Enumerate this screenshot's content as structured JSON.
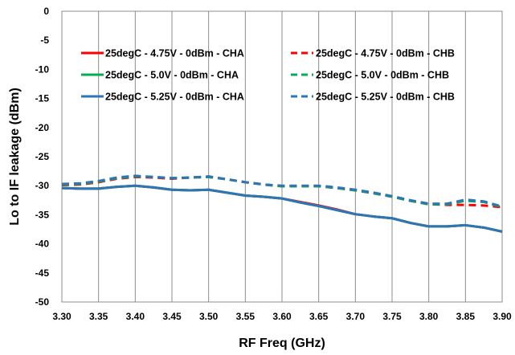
{
  "chart_data": {
    "type": "line",
    "title": "",
    "xlabel": "RF Freq (GHz)",
    "ylabel": "Lo to IF leakage (dBm)",
    "xlim": [
      3.3,
      3.9
    ],
    "ylim": [
      -50,
      0
    ],
    "x_ticks": [
      "3.30",
      "3.35",
      "3.40",
      "3.45",
      "3.50",
      "3.55",
      "3.60",
      "3.65",
      "3.70",
      "3.75",
      "3.80",
      "3.85",
      "3.90"
    ],
    "y_ticks": [
      "0",
      "-5",
      "-10",
      "-15",
      "-20",
      "-25",
      "-30",
      "-35",
      "-40",
      "-45",
      "-50"
    ],
    "grid": {
      "vertical": true,
      "horizontal": false
    },
    "legend_position": "top",
    "x": [
      3.3,
      3.325,
      3.35,
      3.375,
      3.4,
      3.425,
      3.45,
      3.475,
      3.5,
      3.525,
      3.55,
      3.575,
      3.6,
      3.625,
      3.65,
      3.675,
      3.7,
      3.725,
      3.75,
      3.775,
      3.8,
      3.825,
      3.85,
      3.875,
      3.9
    ],
    "series": [
      {
        "name": "25degC - 4.75V - 0dBm - CHA",
        "color": "#ff0000",
        "dash": "solid",
        "values": [
          -30.4,
          -30.5,
          -30.5,
          -30.2,
          -30.0,
          -30.3,
          -30.7,
          -30.8,
          -30.7,
          -31.2,
          -31.7,
          -31.9,
          -32.2,
          -32.8,
          -33.4,
          -34.1,
          -34.9,
          -35.3,
          -35.6,
          -36.4,
          -37.0,
          -37.0,
          -36.8,
          -37.2,
          -37.9
        ]
      },
      {
        "name": "25degC - 4.75V - 0dBm - CHB",
        "color": "#ff0000",
        "dash": "dashed",
        "values": [
          -29.9,
          -29.8,
          -29.4,
          -28.8,
          -28.5,
          -28.6,
          -28.8,
          -28.6,
          -28.5,
          -28.9,
          -29.4,
          -29.8,
          -30.1,
          -30.1,
          -30.1,
          -30.4,
          -30.8,
          -31.3,
          -31.9,
          -32.6,
          -33.2,
          -33.3,
          -33.3,
          -33.4,
          -33.7
        ]
      },
      {
        "name": "25degC - 5.0V - 0dBm - CHA",
        "color": "#00b050",
        "dash": "solid",
        "values": [
          -30.4,
          -30.5,
          -30.5,
          -30.2,
          -30.0,
          -30.3,
          -30.7,
          -30.8,
          -30.7,
          -31.2,
          -31.7,
          -31.9,
          -32.2,
          -32.9,
          -33.5,
          -34.2,
          -34.9,
          -35.3,
          -35.6,
          -36.4,
          -37.0,
          -37.0,
          -36.8,
          -37.2,
          -37.9
        ]
      },
      {
        "name": "25degC - 5.0V - 0dBm - CHB",
        "color": "#00b050",
        "dash": "dashed",
        "values": [
          -29.8,
          -29.7,
          -29.3,
          -28.7,
          -28.4,
          -28.5,
          -28.7,
          -28.6,
          -28.5,
          -28.9,
          -29.4,
          -29.8,
          -30.1,
          -30.1,
          -30.1,
          -30.4,
          -30.8,
          -31.3,
          -31.9,
          -32.6,
          -33.2,
          -33.2,
          -32.6,
          -32.8,
          -33.7
        ]
      },
      {
        "name": "25degC - 5.25V - 0dBm - CHA",
        "color": "#2e75b6",
        "dash": "solid",
        "values": [
          -30.4,
          -30.5,
          -30.5,
          -30.2,
          -30.0,
          -30.3,
          -30.7,
          -30.8,
          -30.7,
          -31.2,
          -31.7,
          -31.9,
          -32.2,
          -32.9,
          -33.5,
          -34.2,
          -34.9,
          -35.3,
          -35.6,
          -36.4,
          -37.0,
          -37.0,
          -36.8,
          -37.2,
          -37.9
        ]
      },
      {
        "name": "25degC - 5.25V - 0dBm - CHB",
        "color": "#2e75b6",
        "dash": "dashed",
        "values": [
          -29.7,
          -29.6,
          -29.2,
          -28.6,
          -28.3,
          -28.5,
          -28.7,
          -28.6,
          -28.4,
          -28.9,
          -29.4,
          -29.8,
          -30.0,
          -30.0,
          -30.0,
          -30.3,
          -30.7,
          -31.2,
          -31.8,
          -32.5,
          -33.1,
          -33.1,
          -32.4,
          -32.7,
          -33.6
        ]
      }
    ]
  }
}
